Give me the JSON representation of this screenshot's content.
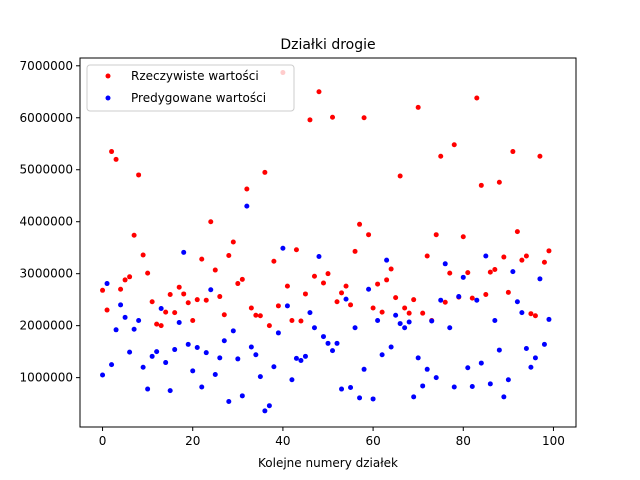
{
  "chart_data": {
    "type": "scatter",
    "title": "Działki drogie",
    "xlabel": "Kolejne numery działek",
    "ylabel": "",
    "xlim": [
      -5,
      105
    ],
    "ylim": [
      50000,
      7150000
    ],
    "xticks": [
      0,
      20,
      40,
      60,
      80,
      100
    ],
    "yticks": [
      1000000,
      2000000,
      3000000,
      4000000,
      5000000,
      6000000,
      7000000
    ],
    "xtick_labels": [
      "0",
      "20",
      "40",
      "60",
      "80",
      "100"
    ],
    "ytick_labels": [
      "1000000",
      "2000000",
      "3000000",
      "4000000",
      "5000000",
      "6000000",
      "7000000"
    ],
    "legend_position": "top-left",
    "grid": false,
    "series": [
      {
        "name": "Rzeczywiste wartości",
        "color": "#ff0000",
        "x": [
          0,
          1,
          2,
          3,
          4,
          5,
          6,
          7,
          8,
          9,
          10,
          11,
          12,
          13,
          14,
          15,
          16,
          17,
          18,
          19,
          20,
          21,
          22,
          23,
          24,
          25,
          26,
          27,
          28,
          29,
          30,
          31,
          32,
          33,
          34,
          35,
          36,
          37,
          38,
          39,
          40,
          41,
          42,
          43,
          44,
          45,
          46,
          47,
          48,
          49,
          50,
          51,
          52,
          53,
          54,
          55,
          56,
          57,
          58,
          59,
          60,
          61,
          62,
          63,
          64,
          65,
          66,
          67,
          68,
          69,
          70,
          71,
          72,
          73,
          74,
          75,
          76,
          77,
          78,
          79,
          80,
          81,
          82,
          83,
          84,
          85,
          86,
          87,
          88,
          89,
          90,
          91,
          92,
          93,
          94,
          95,
          96,
          97,
          98,
          99
        ],
        "y": [
          2680000,
          2300000,
          5350000,
          5200000,
          2700000,
          2880000,
          2940000,
          3740000,
          4900000,
          3360000,
          3010000,
          2460000,
          2030000,
          2000000,
          2260000,
          2600000,
          2250000,
          2740000,
          2610000,
          2440000,
          2100000,
          2500000,
          3280000,
          2490000,
          4000000,
          3070000,
          2560000,
          2210000,
          3350000,
          3610000,
          2810000,
          2890000,
          4630000,
          2340000,
          2200000,
          2190000,
          4950000,
          2000000,
          3240000,
          2380000,
          6870000,
          2760000,
          2100000,
          3460000,
          2090000,
          2610000,
          5960000,
          2950000,
          6500000,
          2820000,
          3000000,
          6010000,
          2460000,
          2630000,
          2760000,
          2400000,
          3430000,
          3950000,
          6000000,
          3750000,
          2340000,
          2800000,
          2260000,
          2880000,
          3090000,
          2540000,
          4880000,
          2340000,
          2240000,
          2500000,
          6200000,
          2240000,
          3340000,
          2100000,
          3750000,
          5260000,
          2450000,
          3010000,
          5480000,
          2550000,
          3710000,
          3020000,
          2530000,
          6380000,
          4700000,
          2600000,
          3030000,
          3080000,
          4760000,
          3320000,
          2640000,
          5350000,
          3810000,
          3260000,
          3340000,
          2230000,
          2190000,
          5260000,
          3220000,
          3440000
        ]
      },
      {
        "name": "Predygowane wartości",
        "color": "#0000ff",
        "x": [
          0,
          1,
          2,
          3,
          4,
          5,
          6,
          7,
          8,
          9,
          10,
          11,
          12,
          13,
          14,
          15,
          16,
          17,
          18,
          19,
          20,
          21,
          22,
          23,
          24,
          25,
          26,
          27,
          28,
          29,
          30,
          31,
          32,
          33,
          34,
          35,
          36,
          37,
          38,
          39,
          40,
          41,
          42,
          43,
          44,
          45,
          46,
          47,
          48,
          49,
          50,
          51,
          52,
          53,
          54,
          55,
          56,
          57,
          58,
          59,
          60,
          61,
          62,
          63,
          64,
          65,
          66,
          67,
          68,
          69,
          70,
          71,
          72,
          73,
          74,
          75,
          76,
          77,
          78,
          79,
          80,
          81,
          82,
          83,
          84,
          85,
          86,
          87,
          88,
          89,
          90,
          91,
          92,
          93,
          94,
          95,
          96,
          97,
          98,
          99
        ],
        "y": [
          1050000,
          2810000,
          1250000,
          1920000,
          2400000,
          2160000,
          1490000,
          1930000,
          2100000,
          1200000,
          780000,
          1410000,
          1500000,
          2330000,
          1290000,
          750000,
          1540000,
          2060000,
          3410000,
          1640000,
          1130000,
          1580000,
          820000,
          1480000,
          2690000,
          1060000,
          1380000,
          1710000,
          540000,
          1900000,
          1360000,
          650000,
          4300000,
          1590000,
          1440000,
          1020000,
          360000,
          460000,
          1210000,
          1860000,
          3490000,
          2380000,
          960000,
          1370000,
          1330000,
          1410000,
          2250000,
          1960000,
          3330000,
          1790000,
          1660000,
          1520000,
          1660000,
          780000,
          2510000,
          810000,
          1960000,
          610000,
          1160000,
          2700000,
          590000,
          2100000,
          1440000,
          3260000,
          1590000,
          2200000,
          2040000,
          1960000,
          2070000,
          630000,
          1380000,
          840000,
          1160000,
          2090000,
          1000000,
          2490000,
          3190000,
          1960000,
          820000,
          2560000,
          2930000,
          1190000,
          830000,
          2490000,
          1280000,
          3340000,
          880000,
          2100000,
          1530000,
          630000,
          960000,
          3040000,
          2460000,
          2250000,
          1560000,
          1200000,
          1380000,
          2900000,
          1640000,
          2120000
        ]
      }
    ]
  }
}
